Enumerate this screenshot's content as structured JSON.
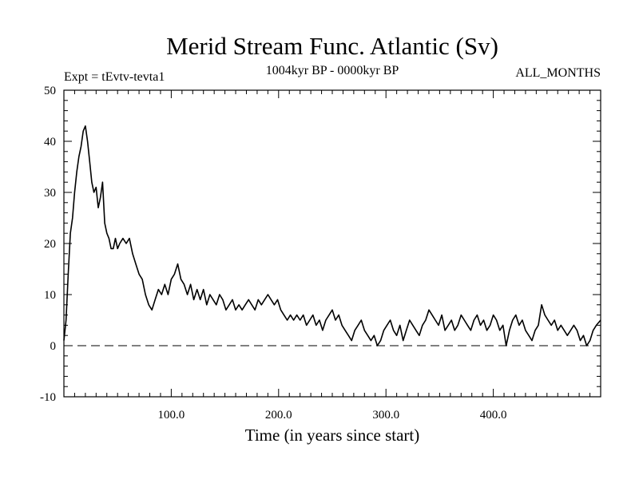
{
  "chart_data": {
    "type": "line",
    "title": "Merid Stream Func. Atlantic (Sv)",
    "subtitle": "1004kyr BP - 0000kyr BP",
    "left_label": "Expt = tEvtv-tevta1",
    "right_label": "ALL_MONTHS",
    "xlabel": "Time (in years since start)",
    "ylabel": "",
    "xlim": [
      0,
      500
    ],
    "ylim": [
      -10,
      50
    ],
    "x_ticks": [
      100,
      200,
      300,
      400
    ],
    "x_tick_labels": [
      "100.0",
      "200.0",
      "300.0",
      "400.0"
    ],
    "y_ticks": [
      -10,
      0,
      10,
      20,
      30,
      40,
      50
    ],
    "y_tick_labels": [
      "-10",
      "0",
      "10",
      "20",
      "30",
      "40",
      "50"
    ],
    "reference_line": {
      "y": 0,
      "style": "dashed"
    },
    "series": [
      {
        "name": "Merid Stream Func. Atlantic",
        "x": [
          0,
          2,
          4,
          6,
          8,
          10,
          12,
          14,
          16,
          18,
          20,
          22,
          24,
          26,
          28,
          30,
          32,
          34,
          36,
          38,
          40,
          42,
          44,
          46,
          48,
          50,
          52,
          55,
          58,
          61,
          64,
          67,
          70,
          73,
          76,
          79,
          82,
          85,
          88,
          91,
          94,
          97,
          100,
          103,
          106,
          109,
          112,
          115,
          118,
          121,
          124,
          127,
          130,
          133,
          136,
          139,
          142,
          145,
          148,
          151,
          154,
          157,
          160,
          163,
          166,
          169,
          172,
          175,
          178,
          181,
          184,
          187,
          190,
          193,
          196,
          199,
          202,
          205,
          208,
          211,
          214,
          217,
          220,
          223,
          226,
          229,
          232,
          235,
          238,
          241,
          244,
          247,
          250,
          253,
          256,
          259,
          262,
          265,
          268,
          271,
          274,
          277,
          280,
          283,
          286,
          289,
          292,
          295,
          298,
          301,
          304,
          307,
          310,
          313,
          316,
          319,
          322,
          325,
          328,
          331,
          334,
          337,
          340,
          343,
          346,
          349,
          352,
          355,
          358,
          361,
          364,
          367,
          370,
          373,
          376,
          379,
          382,
          385,
          388,
          391,
          394,
          397,
          400,
          403,
          406,
          409,
          412,
          415,
          418,
          421,
          424,
          427,
          430,
          433,
          436,
          439,
          442,
          445,
          448,
          451,
          454,
          457,
          460,
          463,
          466,
          469,
          472,
          475,
          478,
          481,
          484,
          487,
          490,
          493,
          496,
          500
        ],
        "y": [
          1,
          5,
          14,
          22,
          25,
          30,
          34,
          37,
          39,
          42,
          43,
          40,
          36,
          32,
          30,
          31,
          27,
          29,
          32,
          24,
          22,
          21,
          19,
          19,
          21,
          19,
          20,
          21,
          20,
          21,
          18,
          16,
          14,
          13,
          10,
          8,
          7,
          9,
          11,
          10,
          12,
          10,
          13,
          14,
          16,
          13,
          12,
          10,
          12,
          9,
          11,
          9,
          11,
          8,
          10,
          9,
          8,
          10,
          9,
          7,
          8,
          9,
          7,
          8,
          7,
          8,
          9,
          8,
          7,
          9,
          8,
          9,
          10,
          9,
          8,
          9,
          7,
          6,
          5,
          6,
          5,
          6,
          5,
          6,
          4,
          5,
          6,
          4,
          5,
          3,
          5,
          6,
          7,
          5,
          6,
          4,
          3,
          2,
          1,
          3,
          4,
          5,
          3,
          2,
          1,
          2,
          0,
          1,
          3,
          4,
          5,
          3,
          2,
          4,
          1,
          3,
          5,
          4,
          3,
          2,
          4,
          5,
          7,
          6,
          5,
          4,
          6,
          3,
          4,
          5,
          3,
          4,
          6,
          5,
          4,
          3,
          5,
          6,
          4,
          5,
          3,
          4,
          6,
          5,
          3,
          4,
          0,
          3,
          5,
          6,
          4,
          5,
          3,
          2,
          1,
          3,
          4,
          8,
          6,
          5,
          4,
          5,
          3,
          4,
          3,
          2,
          3,
          4,
          3,
          1,
          2,
          0,
          1,
          3,
          4,
          5
        ]
      }
    ]
  }
}
